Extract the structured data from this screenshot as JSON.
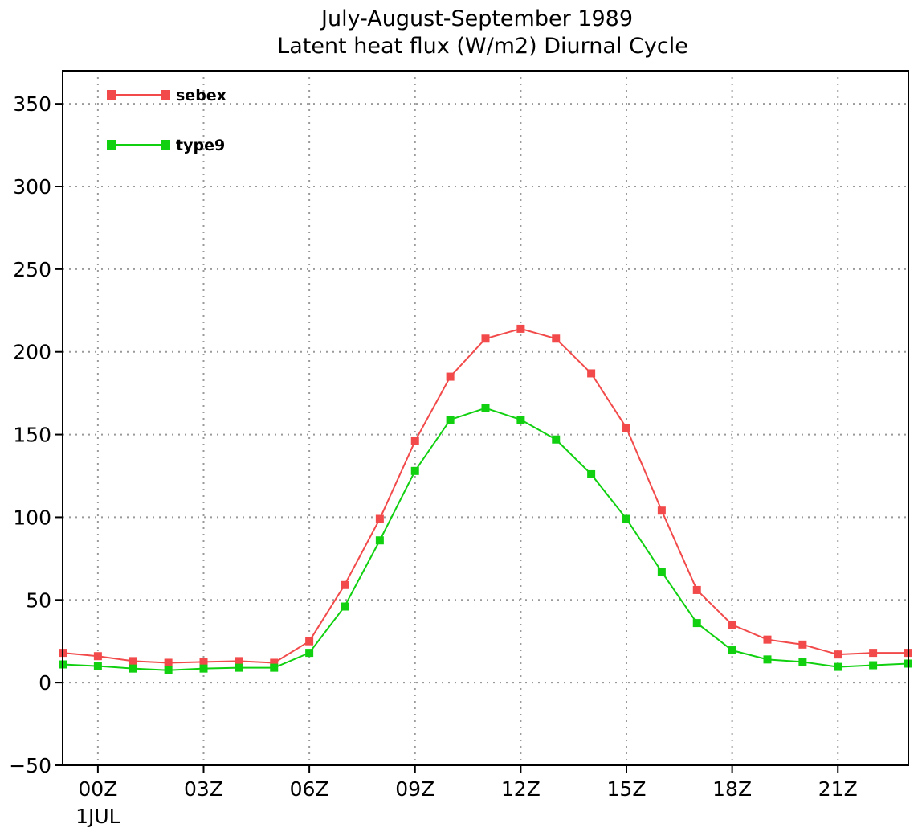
{
  "chart_data": {
    "type": "line",
    "title": "July-August-September 1989",
    "subtitle": "Latent heat flux (W/m2) Diurnal Cycle",
    "xlabel": "",
    "ylabel": "",
    "x": [
      -1,
      0,
      1,
      2,
      3,
      4,
      5,
      6,
      7,
      8,
      9,
      10,
      11,
      12,
      13,
      14,
      15,
      16,
      17,
      18,
      19,
      20,
      21,
      22,
      23
    ],
    "xlim": [
      -1,
      23
    ],
    "ylim": [
      -50,
      370
    ],
    "x_ticks": [
      {
        "x": 0,
        "label": "00Z"
      },
      {
        "x": 3,
        "label": "03Z"
      },
      {
        "x": 6,
        "label": "06Z"
      },
      {
        "x": 9,
        "label": "09Z"
      },
      {
        "x": 12,
        "label": "12Z"
      },
      {
        "x": 15,
        "label": "15Z"
      },
      {
        "x": 18,
        "label": "18Z"
      },
      {
        "x": 21,
        "label": "21Z"
      }
    ],
    "x_sublabel": "1JUL",
    "y_ticks": [
      -50,
      0,
      50,
      100,
      150,
      200,
      250,
      300,
      350
    ],
    "grid": true,
    "legend_position": "top-left",
    "series": [
      {
        "name": "sebex",
        "color": "#f24a4a",
        "values": [
          18,
          16,
          13,
          12,
          12.5,
          13,
          12,
          25,
          59,
          99,
          146,
          185,
          208,
          214,
          208,
          187,
          154,
          104,
          56,
          35,
          26,
          23,
          17,
          18,
          18
        ]
      },
      {
        "name": "type9",
        "color": "#10d010",
        "values": [
          11,
          10,
          8.5,
          7.5,
          8.5,
          9,
          9,
          18,
          46,
          86,
          128,
          159,
          166,
          159,
          147,
          126,
          99,
          67,
          36,
          19.5,
          14,
          12.5,
          9.5,
          10.5,
          11.5
        ]
      }
    ]
  }
}
